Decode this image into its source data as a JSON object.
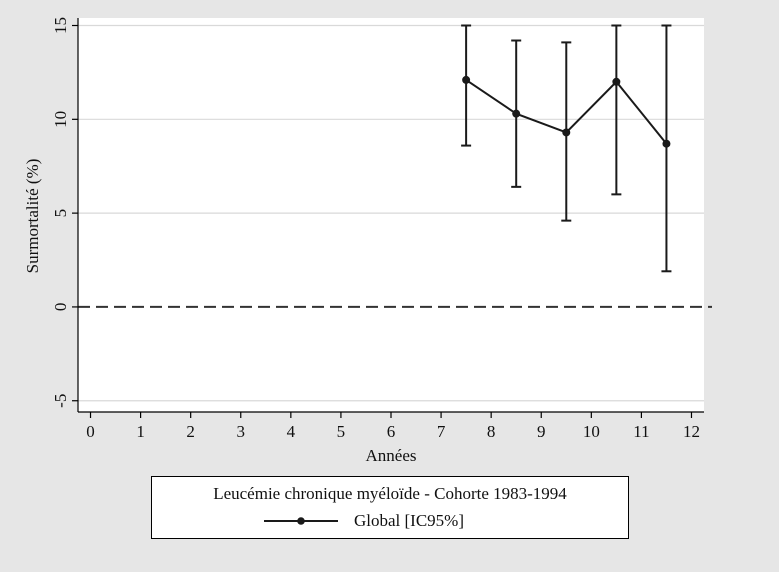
{
  "chart_data": {
    "type": "line",
    "title": "",
    "xlabel": "Années",
    "ylabel": "Surmortalité (%)",
    "xlim": [
      -0.25,
      12.25
    ],
    "ylim": [
      -5.6,
      15.4
    ],
    "x_ticks": [
      0,
      1,
      2,
      3,
      4,
      5,
      6,
      7,
      8,
      9,
      10,
      11,
      12
    ],
    "y_ticks": [
      -5,
      0,
      5,
      10,
      15
    ],
    "grid": true,
    "reference_line": {
      "y": 0,
      "style": "dashed"
    },
    "series": [
      {
        "name": "Global [IC95%]",
        "x": [
          7.5,
          8.5,
          9.5,
          10.5,
          11.5
        ],
        "y": [
          12.1,
          10.3,
          9.3,
          12.0,
          8.7
        ],
        "ci_low": [
          8.6,
          6.4,
          4.6,
          6.0,
          1.9
        ],
        "ci_high": [
          15.0,
          14.2,
          14.1,
          15.0,
          15.0
        ]
      }
    ],
    "legend": {
      "title": "Leucémie chronique myéloïde - Cohorte 1983-1994",
      "placement": "bottom"
    }
  },
  "colors": {
    "background": "#e6e6e6",
    "plot_background": "#ffffff",
    "series": "#1a1a1a",
    "grid": "#d9d9d9"
  }
}
